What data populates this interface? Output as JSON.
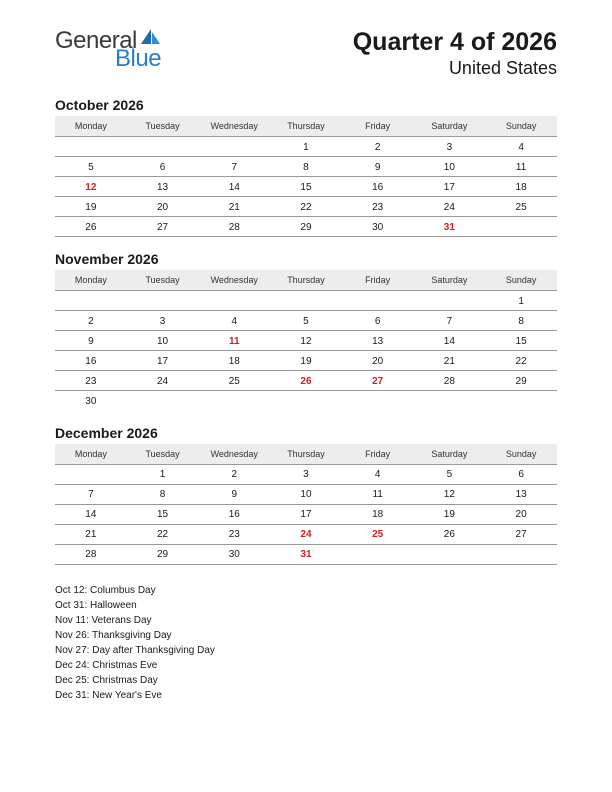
{
  "logo": {
    "text1": "General",
    "text2": "Blue",
    "color1": "#3a3a3a",
    "color2": "#2a7ec5",
    "sail_color": "#1f6aa8"
  },
  "header": {
    "quarter_title": "Quarter 4 of 2026",
    "region": "United States"
  },
  "styling": {
    "header_bg": "#ededed",
    "border_color": "#999999",
    "holiday_color": "#d02020",
    "text_color": "#1a1a1a",
    "day_header_fontsize": 9,
    "cell_fontsize": 10,
    "month_title_fontsize": 14
  },
  "day_headers": [
    "Monday",
    "Tuesday",
    "Wednesday",
    "Thursday",
    "Friday",
    "Saturday",
    "Sunday"
  ],
  "months": [
    {
      "title": "October 2026",
      "weeks": [
        [
          "",
          "",
          "",
          "1",
          "2",
          "3",
          "4"
        ],
        [
          "5",
          "6",
          "7",
          "8",
          "9",
          "10",
          "11"
        ],
        [
          "12",
          "13",
          "14",
          "15",
          "16",
          "17",
          "18"
        ],
        [
          "19",
          "20",
          "21",
          "22",
          "23",
          "24",
          "25"
        ],
        [
          "26",
          "27",
          "28",
          "29",
          "30",
          "31",
          ""
        ]
      ],
      "holidays": [
        "12",
        "31"
      ]
    },
    {
      "title": "November 2026",
      "weeks": [
        [
          "",
          "",
          "",
          "",
          "",
          "",
          "1"
        ],
        [
          "2",
          "3",
          "4",
          "5",
          "6",
          "7",
          "8"
        ],
        [
          "9",
          "10",
          "11",
          "12",
          "13",
          "14",
          "15"
        ],
        [
          "16",
          "17",
          "18",
          "19",
          "20",
          "21",
          "22"
        ],
        [
          "23",
          "24",
          "25",
          "26",
          "27",
          "28",
          "29"
        ],
        [
          "30",
          "",
          "",
          "",
          "",
          "",
          ""
        ]
      ],
      "holidays": [
        "11",
        "26",
        "27"
      ]
    },
    {
      "title": "December 2026",
      "weeks": [
        [
          "",
          "1",
          "2",
          "3",
          "4",
          "5",
          "6"
        ],
        [
          "7",
          "8",
          "9",
          "10",
          "11",
          "12",
          "13"
        ],
        [
          "14",
          "15",
          "16",
          "17",
          "18",
          "19",
          "20"
        ],
        [
          "21",
          "22",
          "23",
          "24",
          "25",
          "26",
          "27"
        ],
        [
          "28",
          "29",
          "30",
          "31",
          "",
          "",
          ""
        ]
      ],
      "holidays": [
        "24",
        "25",
        "31"
      ]
    }
  ],
  "holiday_list": [
    "Oct 12: Columbus Day",
    "Oct 31: Halloween",
    "Nov 11: Veterans Day",
    "Nov 26: Thanksgiving Day",
    "Nov 27: Day after Thanksgiving Day",
    "Dec 24: Christmas Eve",
    "Dec 25: Christmas Day",
    "Dec 31: New Year's Eve"
  ]
}
